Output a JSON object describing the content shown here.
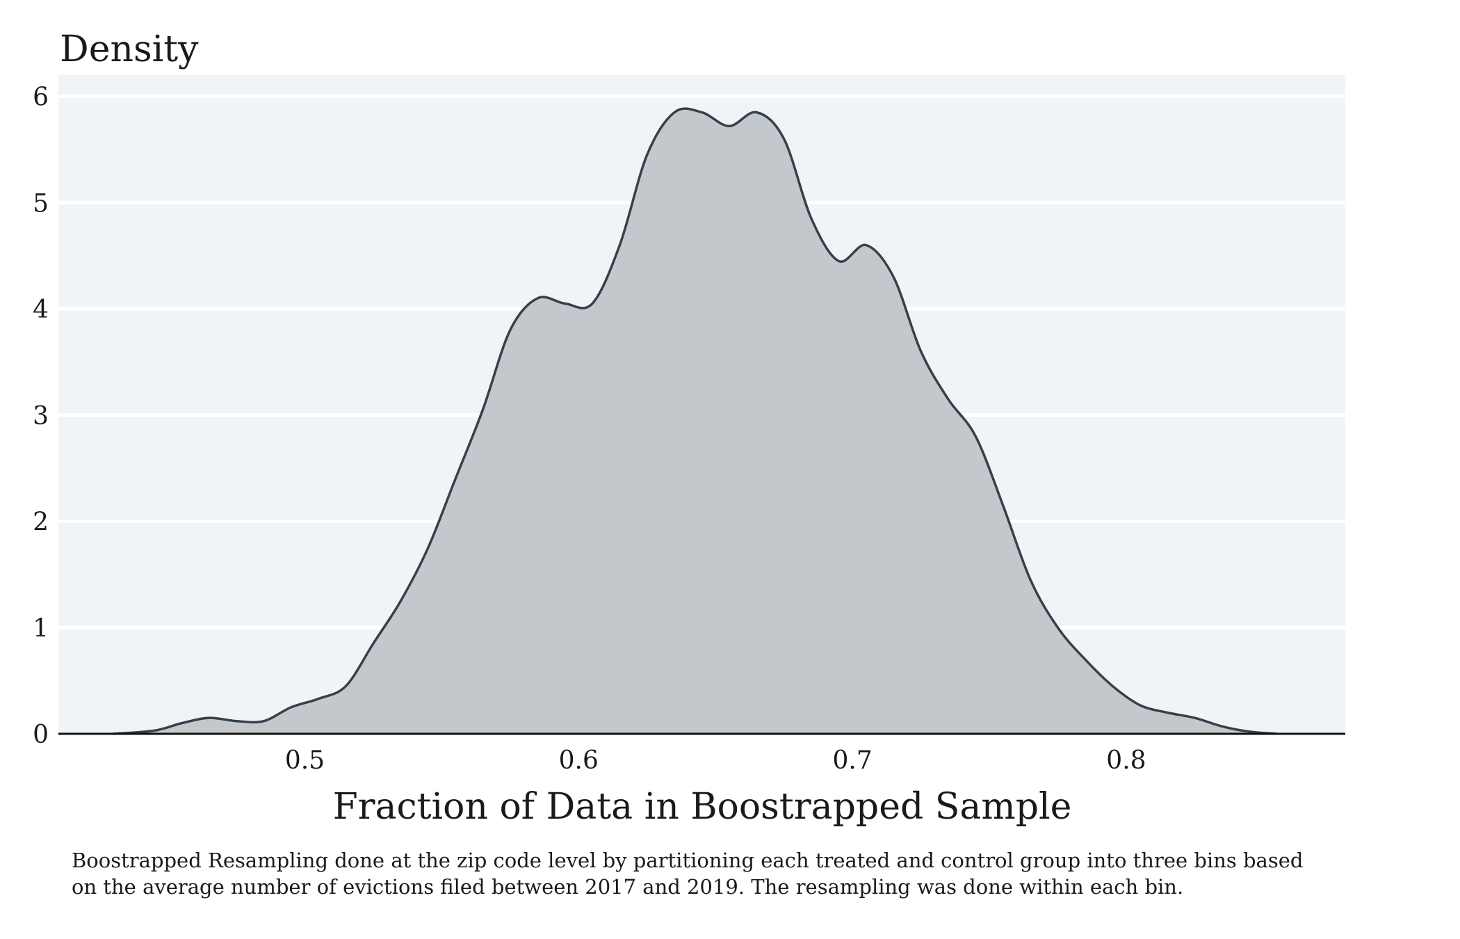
{
  "chart_data": {
    "type": "area",
    "title": "",
    "ylabel": "Density",
    "xlabel": "Fraction of Data in Boostrapped Sample",
    "xlim": [
      0.41,
      0.88
    ],
    "ylim": [
      0,
      6.2
    ],
    "x_ticks": [
      0.5,
      0.6,
      0.7,
      0.8
    ],
    "x_tick_labels": [
      "0.5",
      "0.6",
      "0.7",
      "0.8"
    ],
    "y_ticks": [
      0,
      1,
      2,
      3,
      4,
      5,
      6
    ],
    "y_tick_labels": [
      "0",
      "1",
      "2",
      "3",
      "4",
      "5",
      "6"
    ],
    "grid": "horizontal",
    "legend": "none",
    "series": [
      {
        "x": [
          0.43,
          0.445,
          0.455,
          0.465,
          0.475,
          0.485,
          0.495,
          0.505,
          0.515,
          0.525,
          0.535,
          0.545,
          0.555,
          0.565,
          0.575,
          0.585,
          0.595,
          0.605,
          0.615,
          0.625,
          0.635,
          0.645,
          0.655,
          0.665,
          0.675,
          0.685,
          0.695,
          0.705,
          0.715,
          0.725,
          0.735,
          0.745,
          0.755,
          0.765,
          0.775,
          0.785,
          0.795,
          0.805,
          0.815,
          0.825,
          0.835,
          0.845,
          0.855
        ],
        "y": [
          0.0,
          0.03,
          0.1,
          0.15,
          0.12,
          0.12,
          0.25,
          0.33,
          0.45,
          0.85,
          1.25,
          1.75,
          2.4,
          3.05,
          3.8,
          4.1,
          4.05,
          4.05,
          4.6,
          5.45,
          5.85,
          5.85,
          5.72,
          5.85,
          5.6,
          4.85,
          4.45,
          4.6,
          4.3,
          3.6,
          3.15,
          2.8,
          2.15,
          1.45,
          1.0,
          0.7,
          0.45,
          0.27,
          0.2,
          0.15,
          0.07,
          0.02,
          0.0
        ]
      }
    ],
    "colors": {
      "fill": "#c3c8cd",
      "line": "#36404a",
      "plot_bg": "#f0f4f7",
      "grid": "#ffffff"
    }
  },
  "caption": {
    "line1": "Boostrapped Resampling done at the zip code level by partitioning each treated and control group into three bins based",
    "line2": "on the average number of evictions filed between 2017 and 2019. The resampling was done within each bin."
  }
}
